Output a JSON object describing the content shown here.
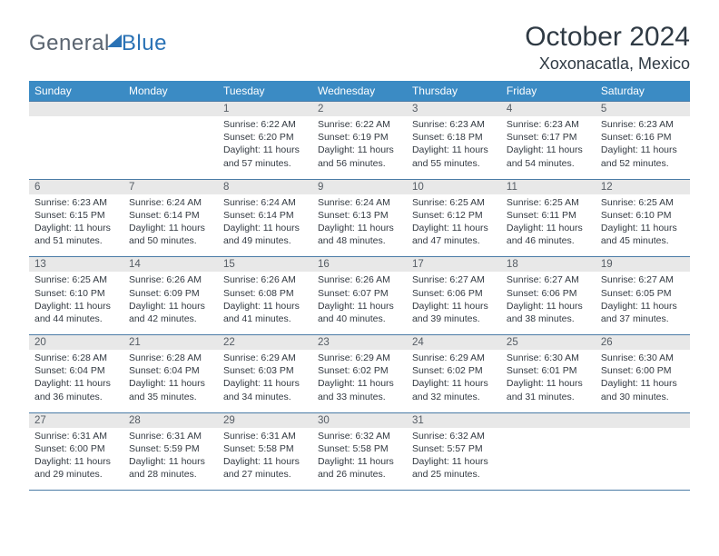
{
  "logo": {
    "part1": "General",
    "part2": "Blue"
  },
  "title": {
    "month": "October 2024",
    "location": "Xoxonacatla, Mexico"
  },
  "colors": {
    "accent": "#3b8bc4",
    "daynum_bg": "#e8e8e8",
    "border": "#4a7ba6",
    "text": "#333a42"
  },
  "style": {
    "header_fontsize": 12,
    "daynum_fontsize": 11.5,
    "info_fontsize": 10.5,
    "title_fontsize": 30,
    "location_fontsize": 18
  },
  "dayHeaders": [
    "Sunday",
    "Monday",
    "Tuesday",
    "Wednesday",
    "Thursday",
    "Friday",
    "Saturday"
  ],
  "weeks": [
    [
      {
        "n": "",
        "sr": "",
        "ss": "",
        "dl": ""
      },
      {
        "n": "",
        "sr": "",
        "ss": "",
        "dl": ""
      },
      {
        "n": "1",
        "sr": "Sunrise: 6:22 AM",
        "ss": "Sunset: 6:20 PM",
        "dl": "Daylight: 11 hours and 57 minutes."
      },
      {
        "n": "2",
        "sr": "Sunrise: 6:22 AM",
        "ss": "Sunset: 6:19 PM",
        "dl": "Daylight: 11 hours and 56 minutes."
      },
      {
        "n": "3",
        "sr": "Sunrise: 6:23 AM",
        "ss": "Sunset: 6:18 PM",
        "dl": "Daylight: 11 hours and 55 minutes."
      },
      {
        "n": "4",
        "sr": "Sunrise: 6:23 AM",
        "ss": "Sunset: 6:17 PM",
        "dl": "Daylight: 11 hours and 54 minutes."
      },
      {
        "n": "5",
        "sr": "Sunrise: 6:23 AM",
        "ss": "Sunset: 6:16 PM",
        "dl": "Daylight: 11 hours and 52 minutes."
      }
    ],
    [
      {
        "n": "6",
        "sr": "Sunrise: 6:23 AM",
        "ss": "Sunset: 6:15 PM",
        "dl": "Daylight: 11 hours and 51 minutes."
      },
      {
        "n": "7",
        "sr": "Sunrise: 6:24 AM",
        "ss": "Sunset: 6:14 PM",
        "dl": "Daylight: 11 hours and 50 minutes."
      },
      {
        "n": "8",
        "sr": "Sunrise: 6:24 AM",
        "ss": "Sunset: 6:14 PM",
        "dl": "Daylight: 11 hours and 49 minutes."
      },
      {
        "n": "9",
        "sr": "Sunrise: 6:24 AM",
        "ss": "Sunset: 6:13 PM",
        "dl": "Daylight: 11 hours and 48 minutes."
      },
      {
        "n": "10",
        "sr": "Sunrise: 6:25 AM",
        "ss": "Sunset: 6:12 PM",
        "dl": "Daylight: 11 hours and 47 minutes."
      },
      {
        "n": "11",
        "sr": "Sunrise: 6:25 AM",
        "ss": "Sunset: 6:11 PM",
        "dl": "Daylight: 11 hours and 46 minutes."
      },
      {
        "n": "12",
        "sr": "Sunrise: 6:25 AM",
        "ss": "Sunset: 6:10 PM",
        "dl": "Daylight: 11 hours and 45 minutes."
      }
    ],
    [
      {
        "n": "13",
        "sr": "Sunrise: 6:25 AM",
        "ss": "Sunset: 6:10 PM",
        "dl": "Daylight: 11 hours and 44 minutes."
      },
      {
        "n": "14",
        "sr": "Sunrise: 6:26 AM",
        "ss": "Sunset: 6:09 PM",
        "dl": "Daylight: 11 hours and 42 minutes."
      },
      {
        "n": "15",
        "sr": "Sunrise: 6:26 AM",
        "ss": "Sunset: 6:08 PM",
        "dl": "Daylight: 11 hours and 41 minutes."
      },
      {
        "n": "16",
        "sr": "Sunrise: 6:26 AM",
        "ss": "Sunset: 6:07 PM",
        "dl": "Daylight: 11 hours and 40 minutes."
      },
      {
        "n": "17",
        "sr": "Sunrise: 6:27 AM",
        "ss": "Sunset: 6:06 PM",
        "dl": "Daylight: 11 hours and 39 minutes."
      },
      {
        "n": "18",
        "sr": "Sunrise: 6:27 AM",
        "ss": "Sunset: 6:06 PM",
        "dl": "Daylight: 11 hours and 38 minutes."
      },
      {
        "n": "19",
        "sr": "Sunrise: 6:27 AM",
        "ss": "Sunset: 6:05 PM",
        "dl": "Daylight: 11 hours and 37 minutes."
      }
    ],
    [
      {
        "n": "20",
        "sr": "Sunrise: 6:28 AM",
        "ss": "Sunset: 6:04 PM",
        "dl": "Daylight: 11 hours and 36 minutes."
      },
      {
        "n": "21",
        "sr": "Sunrise: 6:28 AM",
        "ss": "Sunset: 6:04 PM",
        "dl": "Daylight: 11 hours and 35 minutes."
      },
      {
        "n": "22",
        "sr": "Sunrise: 6:29 AM",
        "ss": "Sunset: 6:03 PM",
        "dl": "Daylight: 11 hours and 34 minutes."
      },
      {
        "n": "23",
        "sr": "Sunrise: 6:29 AM",
        "ss": "Sunset: 6:02 PM",
        "dl": "Daylight: 11 hours and 33 minutes."
      },
      {
        "n": "24",
        "sr": "Sunrise: 6:29 AM",
        "ss": "Sunset: 6:02 PM",
        "dl": "Daylight: 11 hours and 32 minutes."
      },
      {
        "n": "25",
        "sr": "Sunrise: 6:30 AM",
        "ss": "Sunset: 6:01 PM",
        "dl": "Daylight: 11 hours and 31 minutes."
      },
      {
        "n": "26",
        "sr": "Sunrise: 6:30 AM",
        "ss": "Sunset: 6:00 PM",
        "dl": "Daylight: 11 hours and 30 minutes."
      }
    ],
    [
      {
        "n": "27",
        "sr": "Sunrise: 6:31 AM",
        "ss": "Sunset: 6:00 PM",
        "dl": "Daylight: 11 hours and 29 minutes."
      },
      {
        "n": "28",
        "sr": "Sunrise: 6:31 AM",
        "ss": "Sunset: 5:59 PM",
        "dl": "Daylight: 11 hours and 28 minutes."
      },
      {
        "n": "29",
        "sr": "Sunrise: 6:31 AM",
        "ss": "Sunset: 5:58 PM",
        "dl": "Daylight: 11 hours and 27 minutes."
      },
      {
        "n": "30",
        "sr": "Sunrise: 6:32 AM",
        "ss": "Sunset: 5:58 PM",
        "dl": "Daylight: 11 hours and 26 minutes."
      },
      {
        "n": "31",
        "sr": "Sunrise: 6:32 AM",
        "ss": "Sunset: 5:57 PM",
        "dl": "Daylight: 11 hours and 25 minutes."
      },
      {
        "n": "",
        "sr": "",
        "ss": "",
        "dl": ""
      },
      {
        "n": "",
        "sr": "",
        "ss": "",
        "dl": ""
      }
    ]
  ]
}
